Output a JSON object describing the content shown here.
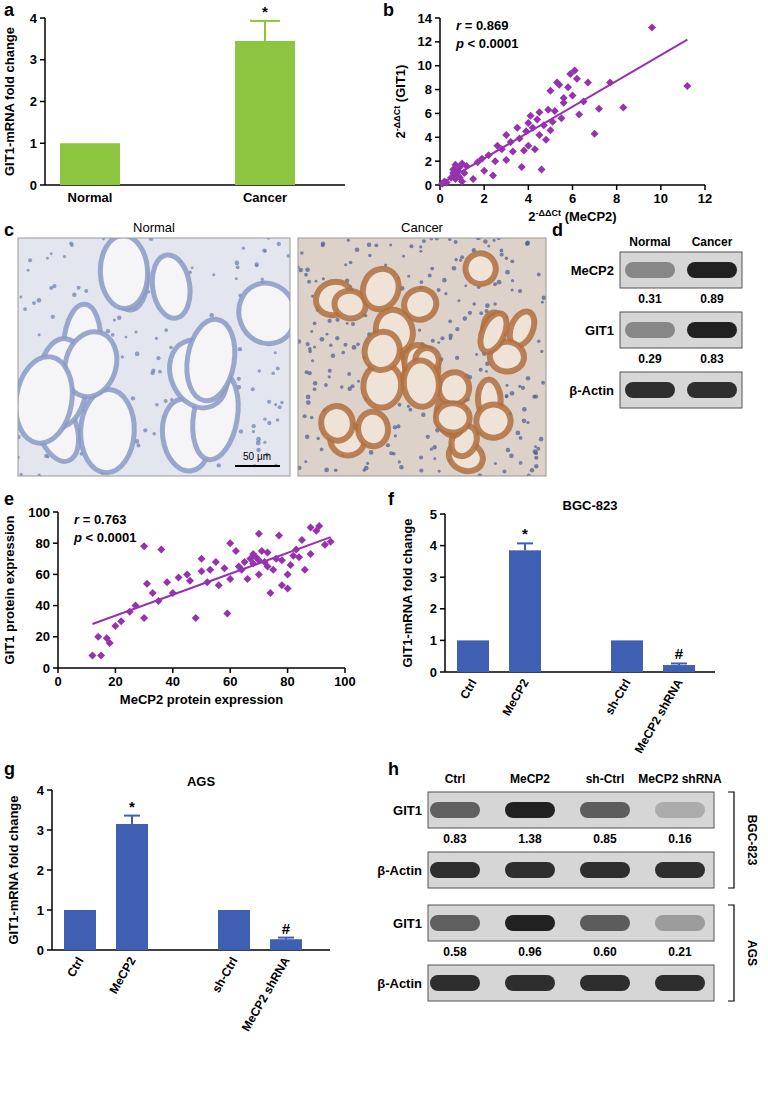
{
  "panel_labels": [
    "a",
    "b",
    "c",
    "d",
    "e",
    "f",
    "g",
    "h"
  ],
  "chart_data": [
    {
      "type": "bar",
      "categories": [
        "Normal",
        "Cancer"
      ],
      "values": [
        1,
        3.45
      ],
      "errors": [
        0,
        0.48
      ],
      "color": "#8cc63f",
      "ylim": [
        0,
        4
      ],
      "yticks": [
        0,
        1,
        2,
        3,
        4
      ],
      "y_label": "GIT1-mRNA fold change",
      "annotations": [
        {
          "text": "*",
          "category": "Cancer"
        }
      ]
    },
    {
      "type": "scatter",
      "x_label": [
        "2",
        "-ΔΔCt",
        " (MeCP2)"
      ],
      "y_label": [
        "2",
        "-ΔΔCt",
        " (GIT1)"
      ],
      "color": "#9632b0",
      "marker": "diamond",
      "xlim": [
        0,
        12
      ],
      "xticks": [
        0,
        2,
        4,
        6,
        8,
        10,
        12
      ],
      "ylim": [
        0,
        14
      ],
      "yticks": [
        0,
        2,
        4,
        6,
        8,
        10,
        12,
        14
      ],
      "annotations": [
        "r = 0.869",
        "p < 0.0001"
      ],
      "x": [
        0.1,
        0.2,
        0.3,
        0.5,
        0.6,
        0.7,
        0.8,
        0.8,
        0.9,
        1.0,
        1.0,
        1.1,
        0.6,
        0.7,
        0.9,
        1.2,
        1.5,
        1.7,
        1.9,
        2.0,
        2.2,
        2.4,
        2.5,
        2.6,
        2.8,
        3.0,
        3.0,
        3.2,
        3.3,
        3.5,
        3.6,
        3.7,
        3.8,
        3.9,
        4.0,
        4.0,
        4.1,
        4.2,
        4.3,
        4.4,
        4.5,
        4.5,
        4.6,
        4.7,
        4.8,
        4.9,
        5.0,
        5.0,
        5.1,
        5.2,
        5.3,
        5.4,
        5.5,
        5.6,
        5.6,
        5.8,
        5.9,
        6.0,
        6.1,
        6.2,
        6.3,
        6.5,
        6.7,
        7.0,
        7.2,
        7.7,
        8.3,
        9.6,
        11.2
      ],
      "values": [
        0.1,
        0.3,
        0.2,
        0.6,
        1.0,
        0.5,
        1.2,
        0.8,
        1.5,
        1.8,
        0.3,
        1.0,
        1.3,
        1.7,
        0.6,
        1.6,
        0.5,
        1.9,
        2.2,
        1.2,
        2.5,
        0.8,
        2.0,
        3.3,
        3.0,
        2.1,
        4.2,
        3.6,
        2.8,
        4.8,
        3.9,
        1.5,
        2.9,
        4.5,
        5.2,
        3.3,
        5.8,
        4.8,
        3.0,
        5.5,
        6.1,
        4.2,
        1.3,
        5.0,
        3.8,
        6.3,
        4.6,
        7.9,
        5.3,
        6.2,
        8.6,
        8.4,
        5.6,
        6.9,
        7.3,
        8.2,
        9.3,
        7.5,
        9.6,
        8.9,
        5.9,
        7.0,
        8.6,
        4.3,
        6.4,
        8.6,
        6.5,
        13.2,
        8.3
      ]
    },
    {
      "type": "scatter",
      "x_label": "MeCP2 protein expression",
      "y_label": "GIT1 protein expression",
      "color": "#9632b0",
      "marker": "diamond",
      "xlim": [
        0,
        100
      ],
      "xticks": [
        0,
        20,
        40,
        60,
        80,
        100
      ],
      "ylim": [
        0,
        100
      ],
      "yticks": [
        0,
        20,
        40,
        60,
        80,
        100
      ],
      "annotations": [
        "r = 0.763",
        "p < 0.0001"
      ],
      "x": [
        12,
        15,
        14,
        17,
        18,
        20,
        22,
        25,
        27,
        30,
        30,
        31,
        33,
        35,
        36,
        38,
        40,
        42,
        45,
        46,
        48,
        50,
        50,
        52,
        53,
        55,
        56,
        58,
        59,
        60,
        60,
        62,
        63,
        64,
        65,
        66,
        67,
        68,
        68,
        69,
        70,
        70,
        70,
        71,
        72,
        73,
        73,
        74,
        75,
        76,
        77,
        78,
        78,
        80,
        80,
        81,
        82,
        83,
        84,
        85,
        86,
        88,
        88,
        90,
        91,
        93,
        95
      ],
      "values": [
        8,
        8,
        20,
        19,
        16,
        27,
        30,
        36,
        40,
        32,
        78,
        54,
        48,
        43,
        76,
        55,
        48,
        58,
        60,
        56,
        32,
        70,
        62,
        55,
        63,
        68,
        53,
        64,
        35,
        80,
        57,
        75,
        65,
        63,
        68,
        57,
        70,
        73,
        67,
        71,
        86,
        69,
        60,
        75,
        68,
        74,
        65,
        48,
        63,
        70,
        85,
        69,
        53,
        60,
        51,
        66,
        72,
        76,
        71,
        82,
        63,
        73,
        90,
        88,
        91,
        79,
        81
      ]
    },
    {
      "type": "bar",
      "title": "BGC-823",
      "categories": [
        "Ctrl",
        "MeCP2",
        "sh-Ctrl",
        "MeCP2 shRNA"
      ],
      "values": [
        1,
        3.85,
        1,
        0.22
      ],
      "errors": [
        0,
        0.22,
        0,
        0.05
      ],
      "color": "#3f5fb2",
      "ylim": [
        0,
        5
      ],
      "yticks": [
        0,
        1,
        2,
        3,
        4,
        5
      ],
      "y_label": "GIT1-mRNA fold change",
      "annotations": [
        {
          "text": "*",
          "category": "MeCP2"
        },
        {
          "text": "#",
          "category": "MeCP2 shRNA"
        }
      ]
    },
    {
      "type": "bar",
      "title": "AGS",
      "categories": [
        "Ctrl",
        "MeCP2",
        "sh-Ctrl",
        "MeCP2 shRNA"
      ],
      "values": [
        1,
        3.15,
        1,
        0.27
      ],
      "errors": [
        0,
        0.21,
        0,
        0.04
      ],
      "color": "#3f5fb2",
      "ylim": [
        0,
        4
      ],
      "yticks": [
        0,
        1,
        2,
        3,
        4
      ],
      "y_label": "GIT1-mRNA fold change",
      "annotations": [
        {
          "text": "*",
          "category": "MeCP2"
        },
        {
          "text": "#",
          "category": "MeCP2 shRNA"
        }
      ]
    }
  ],
  "images": {
    "labels": [
      "Normal",
      "Cancer"
    ],
    "scale_bar": "50 μm"
  },
  "blots": [
    {
      "lanes": [
        "Normal",
        "Cancer"
      ],
      "groups": [
        {
          "rows": [
            {
              "label": "MeCP2",
              "values": [
                "0.31",
                "0.89"
              ]
            },
            {
              "label": "GIT1",
              "values": [
                "0.29",
                "0.83"
              ]
            },
            {
              "label": "β-Actin"
            }
          ]
        }
      ]
    },
    {
      "lanes": [
        "Ctrl",
        "MeCP2",
        "sh-Ctrl",
        "MeCP2 shRNA"
      ],
      "groups": [
        {
          "name": "BGC-823",
          "rows": [
            {
              "label": "GIT1",
              "values": [
                "0.83",
                "1.38",
                "0.85",
                "0.16"
              ]
            },
            {
              "label": "β-Actin"
            }
          ]
        },
        {
          "name": "AGS",
          "rows": [
            {
              "label": "GIT1",
              "values": [
                "0.58",
                "0.96",
                "0.60",
                "0.21"
              ]
            },
            {
              "label": "β-Actin"
            }
          ]
        }
      ]
    }
  ]
}
